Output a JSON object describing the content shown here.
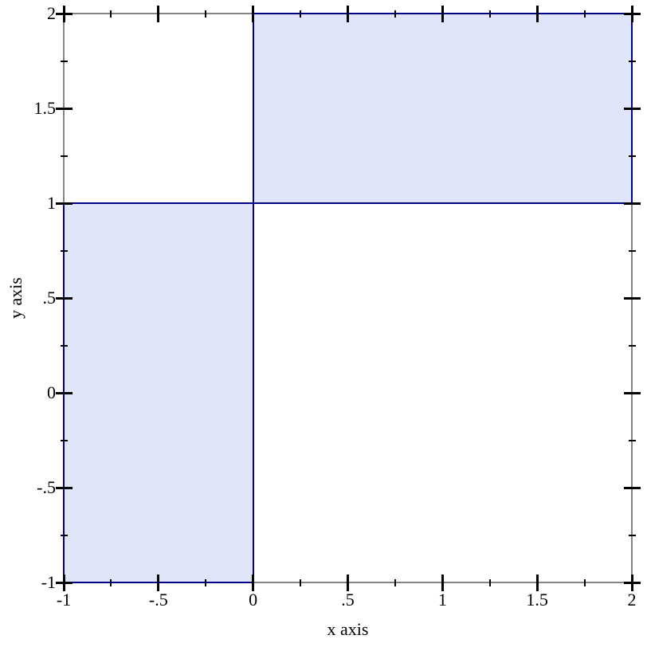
{
  "chart_data": {
    "type": "area",
    "subtype": "axis-aligned-shaded-rectangles",
    "title": "",
    "xlabel": "x axis",
    "ylabel": "y axis",
    "xlim": [
      -1,
      2
    ],
    "ylim": [
      -1,
      2
    ],
    "grid": false,
    "legend": "none",
    "rectangles": [
      {
        "x0": -1,
        "y0": -1,
        "x1": 0,
        "y1": 1
      },
      {
        "x0": 0,
        "y0": 1,
        "x1": 2,
        "y1": 2
      }
    ],
    "x_axis": {
      "major_ticks": [
        {
          "value": -1,
          "label": "-1"
        },
        {
          "value": -0.5,
          "label": "-.5"
        },
        {
          "value": 0,
          "label": "0"
        },
        {
          "value": 0.5,
          "label": ".5"
        },
        {
          "value": 1,
          "label": "1"
        },
        {
          "value": 1.5,
          "label": "1.5"
        },
        {
          "value": 2,
          "label": "2"
        }
      ],
      "minor_ticks": [
        -0.75,
        -0.25,
        0.25,
        0.75,
        1.25,
        1.75
      ]
    },
    "y_axis": {
      "major_ticks": [
        {
          "value": 2,
          "label": "2"
        },
        {
          "value": 1.5,
          "label": "1.5"
        },
        {
          "value": 1,
          "label": "1"
        },
        {
          "value": 0.5,
          "label": ".5"
        },
        {
          "value": 0,
          "label": "0"
        },
        {
          "value": -0.5,
          "label": "-.5"
        },
        {
          "value": -1,
          "label": "-1"
        }
      ],
      "minor_ticks": [
        -0.75,
        -0.25,
        0.25,
        0.75,
        1.25,
        1.75
      ]
    },
    "colors": {
      "rect_fill": "#e1e5fa",
      "rect_stroke": "#00008b",
      "frame": "#848484",
      "tick": "#000000",
      "text": "#000000",
      "background": "#ffffff"
    }
  }
}
